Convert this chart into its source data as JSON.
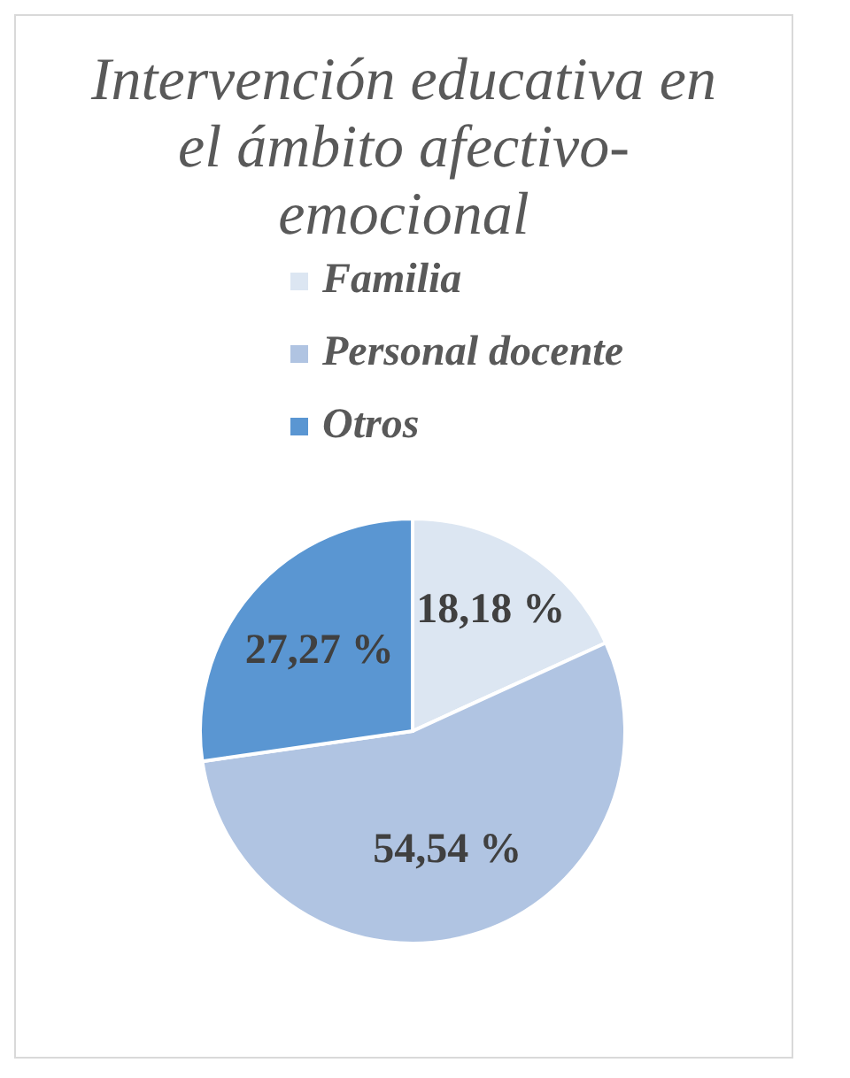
{
  "chart_data": {
    "type": "pie",
    "title": "Intervención educativa en el ámbito afectivo-emocional",
    "categories": [
      "Familia",
      "Personal docente",
      "Otros"
    ],
    "values": [
      18.18,
      54.54,
      27.27
    ],
    "colors": [
      "#dce6f2",
      "#b0c4e2",
      "#5a96d2"
    ],
    "value_labels": [
      "18,18 %",
      "54,54 %",
      "27,27 %"
    ],
    "legend": "top"
  }
}
